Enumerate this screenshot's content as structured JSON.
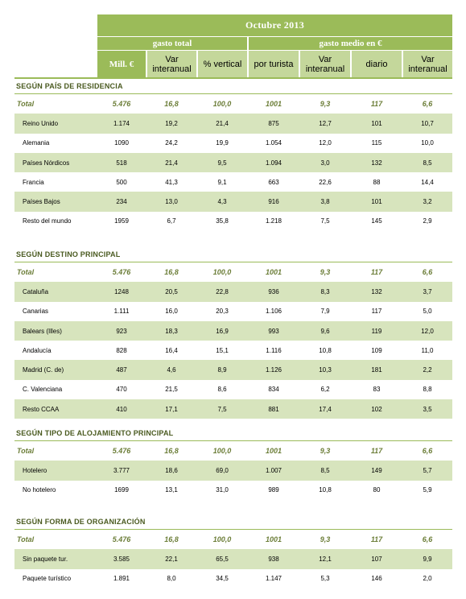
{
  "header": {
    "title": "Octubre 2013",
    "group_gasto_total": "gasto total",
    "group_gasto_medio": "gasto medio en €",
    "columns": [
      "Mill. €",
      "Var interanual",
      "% vertical",
      "por turista",
      "Var interanual",
      "diario",
      "Var interanual"
    ]
  },
  "sections": [
    {
      "title": "SEGÚN PAÍS DE RESIDENCIA",
      "rows": [
        {
          "name": "Total",
          "values": [
            "5.476",
            "16,8",
            "100,0",
            "1001",
            "9,3",
            "117",
            "6,6"
          ],
          "total": true
        },
        {
          "name": "Reino Unido",
          "values": [
            "1.174",
            "19,2",
            "21,4",
            "875",
            "12,7",
            "101",
            "10,7"
          ]
        },
        {
          "name": "Alemania",
          "values": [
            "1090",
            "24,2",
            "19,9",
            "1.054",
            "12,0",
            "115",
            "10,0"
          ]
        },
        {
          "name": "Países Nórdicos",
          "values": [
            "518",
            "21,4",
            "9,5",
            "1.094",
            "3,0",
            "132",
            "8,5"
          ]
        },
        {
          "name": "Francia",
          "values": [
            "500",
            "41,3",
            "9,1",
            "663",
            "22,6",
            "88",
            "14,4"
          ]
        },
        {
          "name": "Países Bajos",
          "values": [
            "234",
            "13,0",
            "4,3",
            "916",
            "3,8",
            "101",
            "3,2"
          ]
        },
        {
          "name": "Resto del mundo",
          "values": [
            "1959",
            "6,7",
            "35,8",
            "1.218",
            "7,5",
            "145",
            "2,9"
          ]
        }
      ]
    },
    {
      "title": "SEGÚN DESTINO PRINCIPAL",
      "rows": [
        {
          "name": "Total",
          "values": [
            "5.476",
            "16,8",
            "100,0",
            "1001",
            "9,3",
            "117",
            "6,6"
          ],
          "total": true
        },
        {
          "name": "Cataluña",
          "values": [
            "1248",
            "20,5",
            "22,8",
            "936",
            "8,3",
            "132",
            "3,7"
          ]
        },
        {
          "name": "Canarias",
          "values": [
            "1.111",
            "16,0",
            "20,3",
            "1.106",
            "7,9",
            "117",
            "5,0"
          ]
        },
        {
          "name": "Balears (Illes)",
          "values": [
            "923",
            "18,3",
            "16,9",
            "993",
            "9,6",
            "119",
            "12,0"
          ]
        },
        {
          "name": "Andalucía",
          "values": [
            "828",
            "16,4",
            "15,1",
            "1.116",
            "10,8",
            "109",
            "11,0"
          ]
        },
        {
          "name": "Madrid (C. de)",
          "values": [
            "487",
            "4,6",
            "8,9",
            "1.126",
            "10,3",
            "181",
            "2,2"
          ]
        },
        {
          "name": "C. Valenciana",
          "values": [
            "470",
            "21,5",
            "8,6",
            "834",
            "6,2",
            "83",
            "8,8"
          ]
        },
        {
          "name": "Resto CCAA",
          "values": [
            "410",
            "17,1",
            "7,5",
            "881",
            "17,4",
            "102",
            "3,5"
          ]
        }
      ]
    },
    {
      "title": "SEGÚN TIPO DE ALOJAMIENTO PRINCIPAL",
      "rows": [
        {
          "name": "Total",
          "values": [
            "5.476",
            "16,8",
            "100,0",
            "1001",
            "9,3",
            "117",
            "6,6"
          ],
          "total": true
        },
        {
          "name": "Hotelero",
          "values": [
            "3.777",
            "18,6",
            "69,0",
            "1.007",
            "8,5",
            "149",
            "5,7"
          ]
        },
        {
          "name": "No hotelero",
          "values": [
            "1699",
            "13,1",
            "31,0",
            "989",
            "10,8",
            "80",
            "5,9"
          ]
        }
      ]
    },
    {
      "title": "SEGÚN FORMA DE ORGANIZACIÓN",
      "rows": [
        {
          "name": "Total",
          "values": [
            "5.476",
            "16,8",
            "100,0",
            "1001",
            "9,3",
            "117",
            "6,6"
          ],
          "total": true
        },
        {
          "name": "Sin paquete tur.",
          "values": [
            "3.585",
            "22,1",
            "65,5",
            "938",
            "12,1",
            "107",
            "9,9"
          ]
        },
        {
          "name": "Paquete turístico",
          "values": [
            "1.891",
            "8,0",
            "34,5",
            "1.147",
            "5,3",
            "146",
            "2,0"
          ]
        }
      ]
    }
  ]
}
